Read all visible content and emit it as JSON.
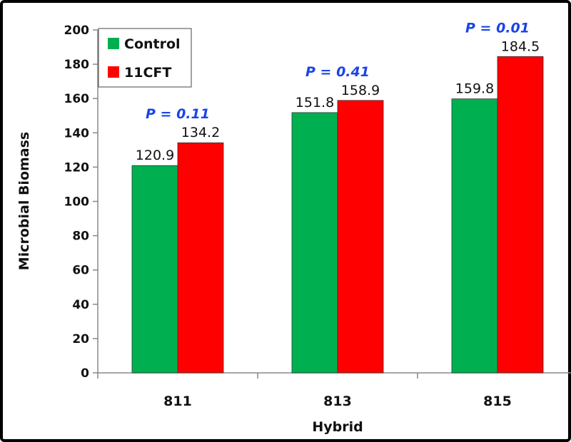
{
  "chart_data": {
    "type": "bar",
    "categories": [
      "811",
      "813",
      "815"
    ],
    "series": [
      {
        "name": "Control",
        "color": "#00b050",
        "values": [
          120.9,
          151.8,
          159.8
        ],
        "labels": [
          "120.9",
          "151.8",
          "159.8"
        ]
      },
      {
        "name": "11CFT",
        "color": "#ff0000",
        "values": [
          134.2,
          158.9,
          184.5
        ],
        "labels": [
          "134.2",
          "158.9",
          "184.5"
        ]
      }
    ],
    "annotations": [
      "P = 0.11",
      "P = 0.41",
      "P = 0.01"
    ],
    "annotation_color": "#1a44e8",
    "xlabel": "Hybrid",
    "ylabel": "Microbial Biomass",
    "ylim": [
      0,
      200
    ],
    "yticks": [
      0,
      20,
      40,
      60,
      80,
      100,
      120,
      140,
      160,
      180,
      200
    ],
    "legend_position": "top-left",
    "grid": false
  }
}
